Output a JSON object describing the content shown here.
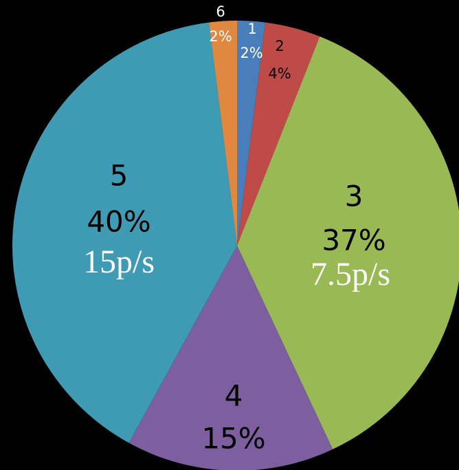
{
  "chart_data": {
    "type": "pie",
    "categories": [
      "1",
      "2",
      "3",
      "4",
      "5",
      "6"
    ],
    "values": [
      2,
      4,
      37,
      15,
      40,
      2
    ],
    "value_labels": [
      "2%",
      "4%",
      "37%",
      "15%",
      "40%",
      "2%"
    ],
    "colors": [
      "#4a7ebb",
      "#be4b48",
      "#98b954",
      "#7d5fa0",
      "#3f9ab3",
      "#e0883f"
    ],
    "annotations": [
      "15p/s",
      "7.5p/s"
    ]
  }
}
